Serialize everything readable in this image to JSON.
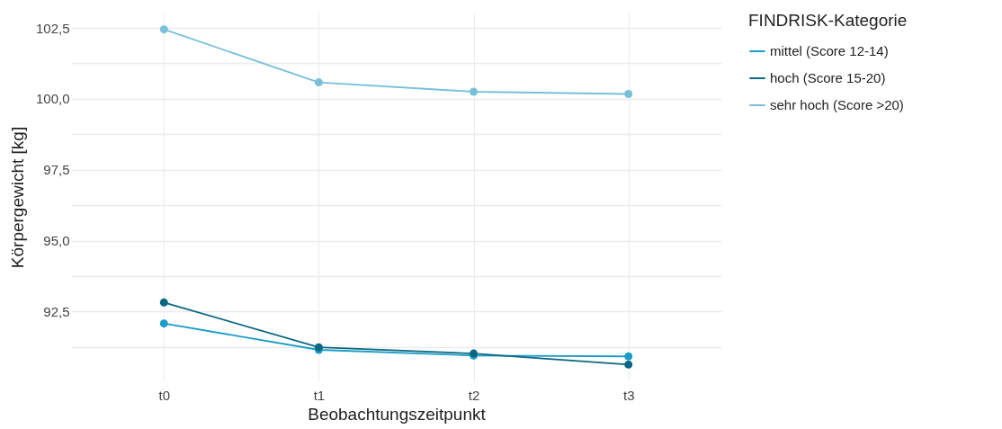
{
  "chart_data": {
    "type": "line",
    "xlabel": "Beobachtungszeitpunkt",
    "ylabel": "Körpergewicht [kg]",
    "legend_title": "FINDRISK-Kategorie",
    "categories": [
      "t0",
      "t1",
      "t2",
      "t3"
    ],
    "series": [
      {
        "name": "mittel (Score 12-14)",
        "color": "#1b9dc7",
        "values": [
          92.08,
          91.15,
          90.95,
          90.92
        ]
      },
      {
        "name": "hoch (Score 15-20)",
        "color": "#0a6782",
        "values": [
          92.82,
          91.24,
          91.02,
          90.63
        ]
      },
      {
        "name": "sehr hoch (Score >20)",
        "color": "#78c0d8",
        "values": [
          102.45,
          100.58,
          100.25,
          100.17
        ]
      }
    ],
    "ylim": [
      90.04,
      103.04
    ],
    "yticks": [
      {
        "value": 91.25,
        "label": null
      },
      {
        "value": 92.5,
        "label": "92,5"
      },
      {
        "value": 93.75,
        "label": null
      },
      {
        "value": 95.0,
        "label": "95,0"
      },
      {
        "value": 96.25,
        "label": null
      },
      {
        "value": 97.5,
        "label": "97,5"
      },
      {
        "value": 98.75,
        "label": null
      },
      {
        "value": 100.0,
        "label": "100,0"
      },
      {
        "value": 101.25,
        "label": null
      },
      {
        "value": 102.5,
        "label": "102,5"
      }
    ],
    "grid": true,
    "legend": "right",
    "marker": "circle",
    "line_style": "solid"
  }
}
